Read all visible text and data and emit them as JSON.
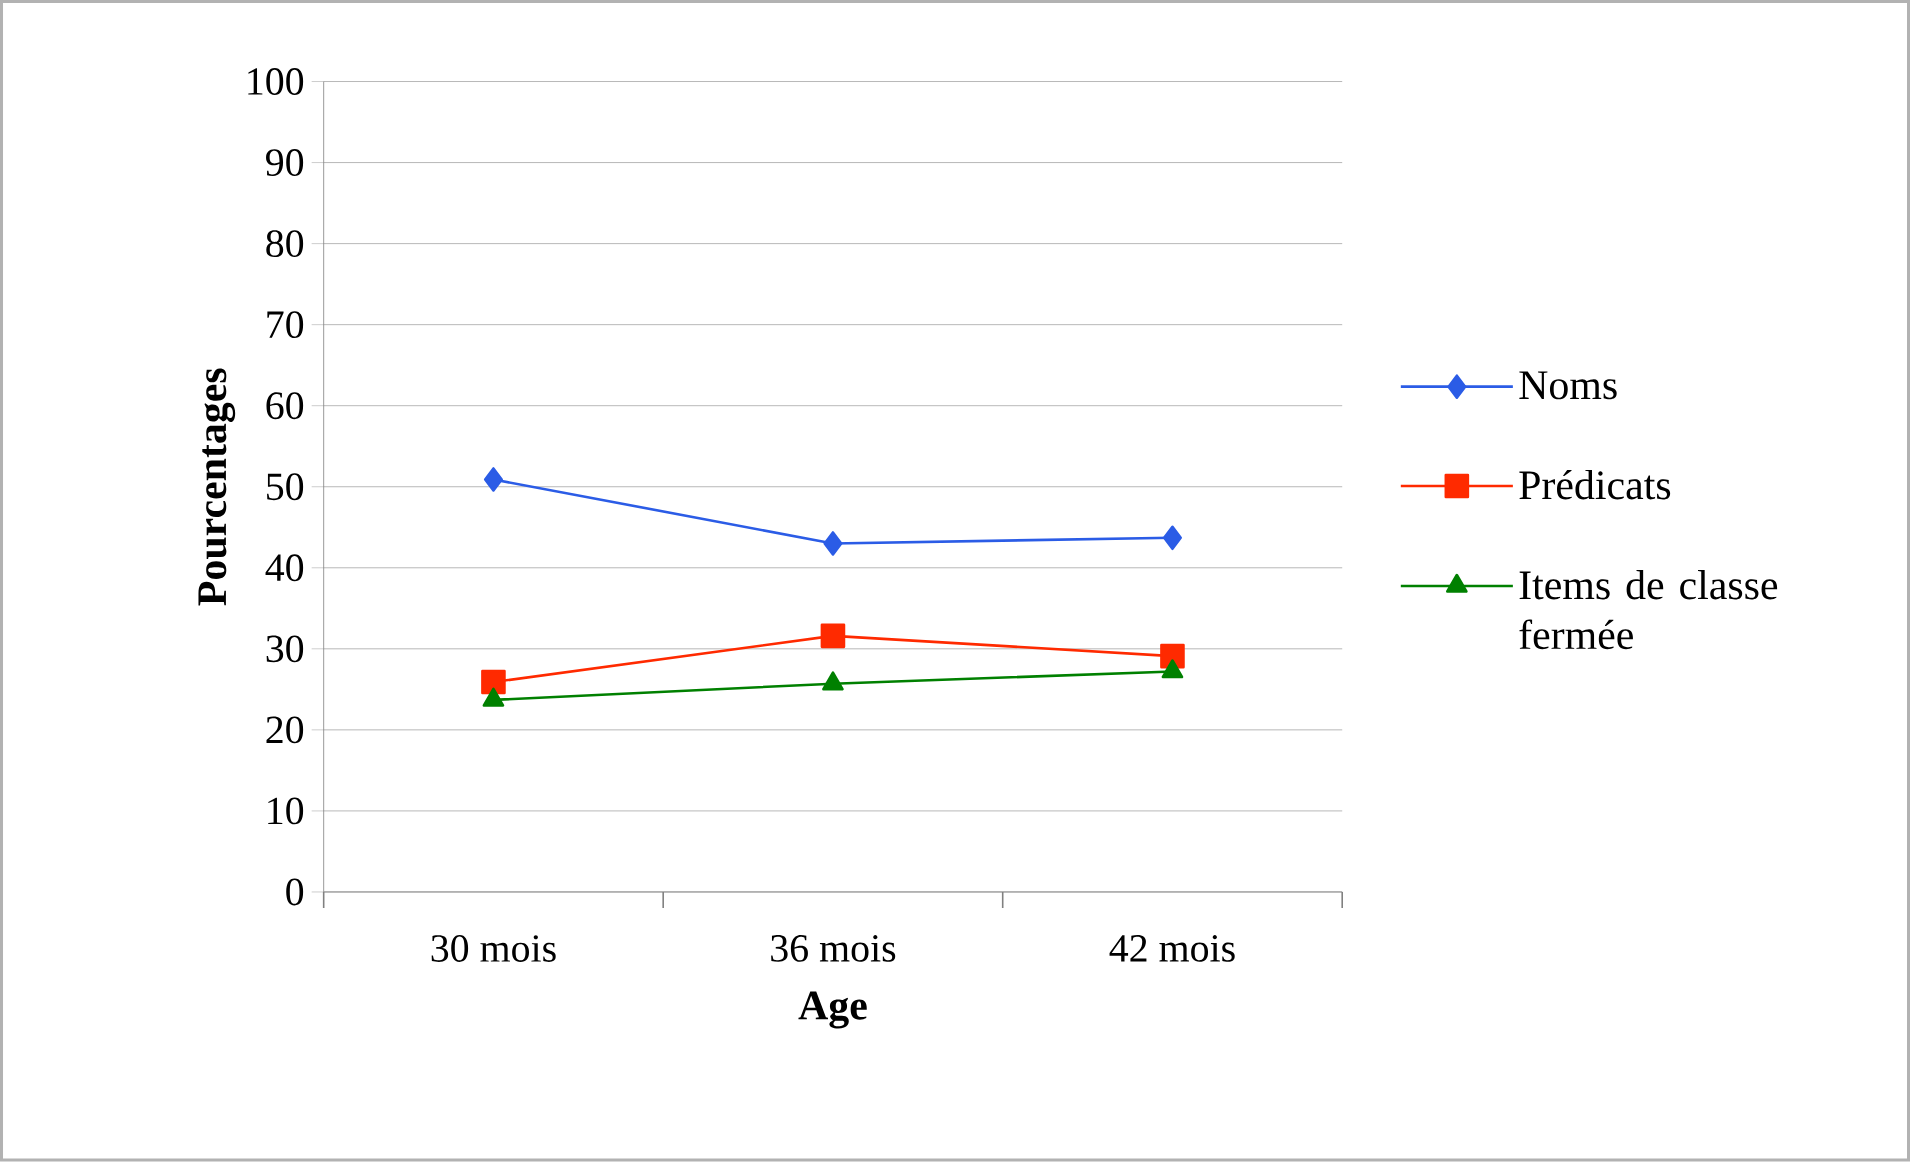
{
  "chart_data": {
    "type": "line",
    "xlabel": "Age",
    "ylabel": "Pourcentages",
    "categories": [
      "30 mois",
      "36 mois",
      "42 mois"
    ],
    "series": [
      {
        "name": "Noms",
        "color": "#2b5ce6",
        "marker": "diamond",
        "values": [
          50.9,
          43.0,
          43.7
        ]
      },
      {
        "name": "Prédicats",
        "color": "#ff2a00",
        "marker": "square",
        "values": [
          25.9,
          31.6,
          29.1
        ]
      },
      {
        "name": "Items de classe fermée",
        "color": "#008000",
        "marker": "triangle",
        "values": [
          23.7,
          25.7,
          27.2
        ]
      }
    ],
    "ylim": [
      0,
      100
    ],
    "yticks": [
      0,
      10,
      20,
      30,
      40,
      50,
      60,
      70,
      80,
      90,
      100
    ],
    "grid": "y",
    "legend": "right"
  }
}
